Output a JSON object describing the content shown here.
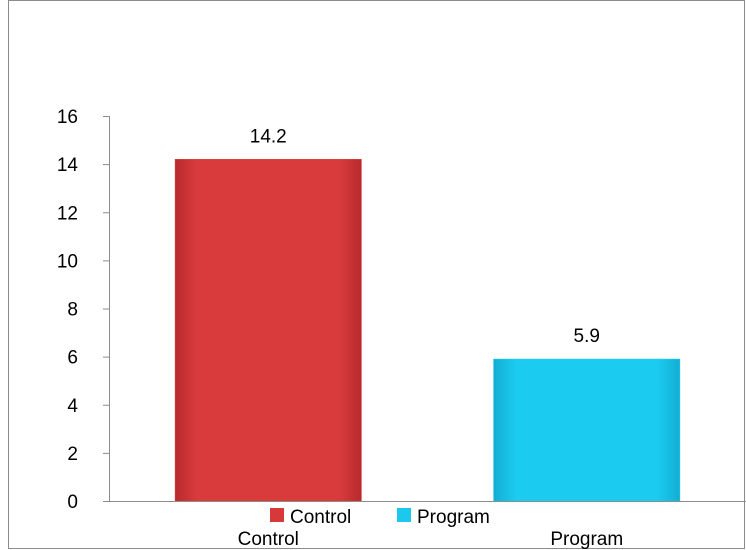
{
  "chart_data": {
    "type": "bar",
    "categories": [
      "Control",
      "Program"
    ],
    "values": [
      14.2,
      5.9
    ],
    "data_labels": [
      "14.2",
      "5.9"
    ],
    "bar_colors": [
      "#D7383A",
      "#1CC8EE"
    ],
    "ylim": [
      0,
      16
    ],
    "yticks": [
      "0",
      "2",
      "4",
      "6",
      "8",
      "10",
      "12",
      "14",
      "16"
    ],
    "grid": false,
    "legend": {
      "placement": "bottom",
      "entries": [
        {
          "label": "Control",
          "color": "#D7383A"
        },
        {
          "label": "Program",
          "color": "#1CC8EE"
        }
      ]
    }
  }
}
